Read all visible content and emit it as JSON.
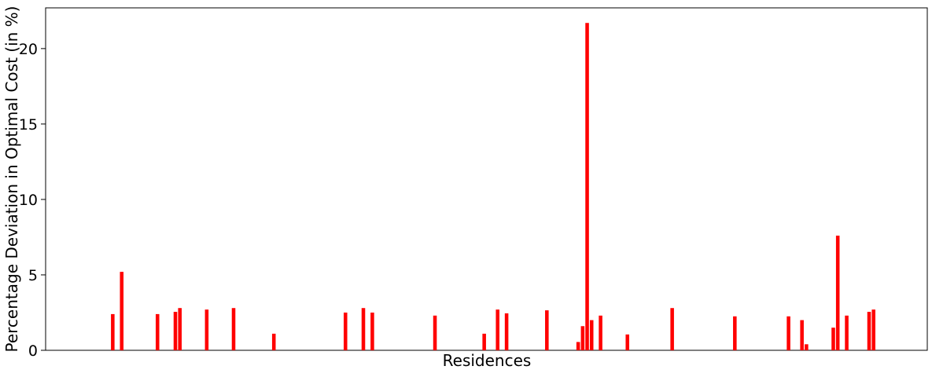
{
  "chart_data": {
    "type": "bar",
    "title": "",
    "xlabel": "Residences",
    "ylabel": "Percentage Deviation in Optimal Cost (in %)",
    "ylim": [
      0,
      22.7
    ],
    "yticks": [
      0,
      5,
      10,
      15,
      20
    ],
    "xlim": [
      0,
      197
    ],
    "grid": false,
    "bar_color": "#ff0000",
    "x": [
      15,
      17,
      25,
      29,
      30,
      36,
      42,
      51,
      67,
      71,
      73,
      87,
      98,
      101,
      103,
      112,
      119,
      120,
      121,
      122,
      124,
      130,
      140,
      154,
      166,
      169,
      170,
      176,
      177,
      179,
      184,
      185
    ],
    "values": [
      2.4,
      5.2,
      2.4,
      2.55,
      2.8,
      2.7,
      2.8,
      1.1,
      2.5,
      2.8,
      2.5,
      2.3,
      1.1,
      2.7,
      2.45,
      2.65,
      0.55,
      1.6,
      21.7,
      2.0,
      2.3,
      1.05,
      2.8,
      2.25,
      2.25,
      2.0,
      0.4,
      1.5,
      7.6,
      2.3,
      2.55,
      2.7
    ]
  }
}
